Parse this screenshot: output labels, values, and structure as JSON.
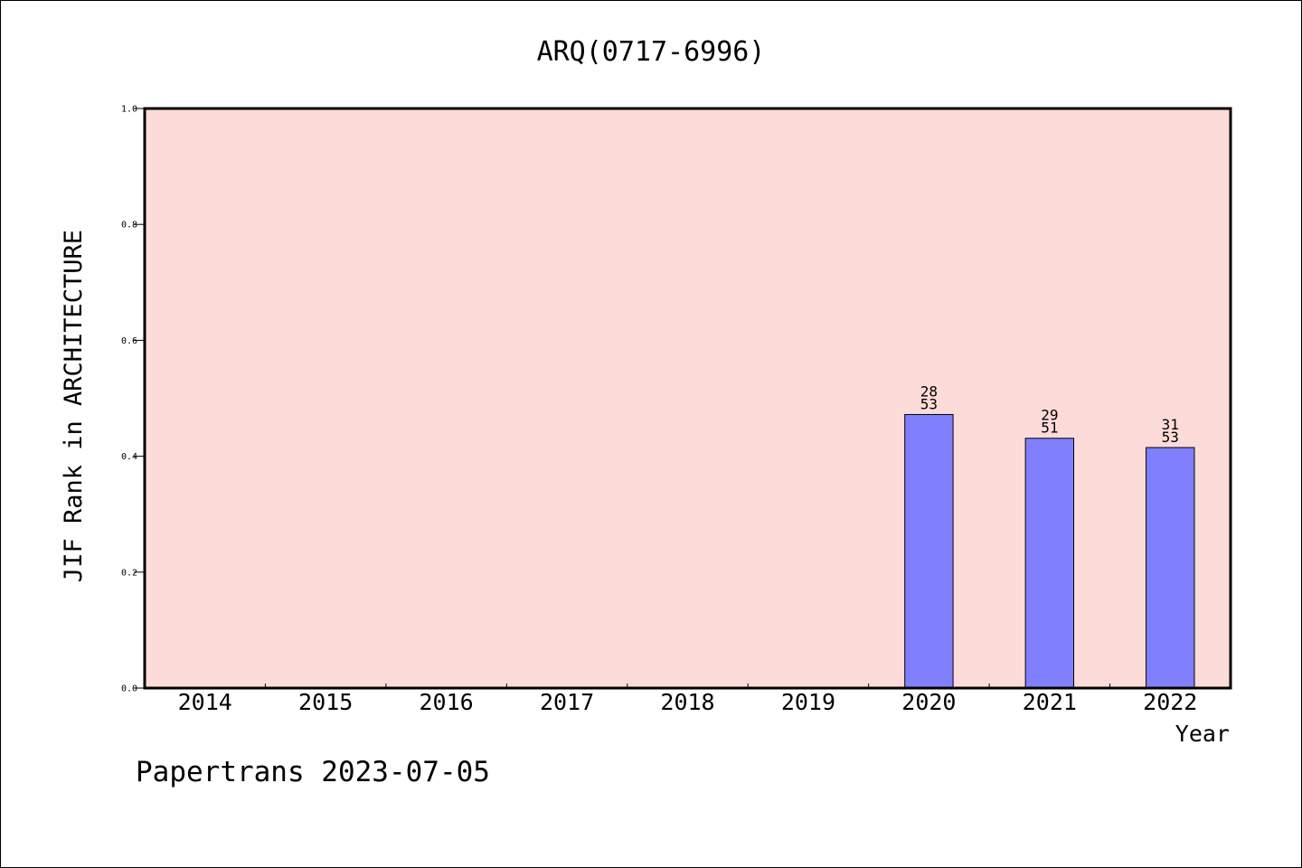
{
  "chart_data": {
    "type": "bar",
    "title": "ARQ(0717-6996)",
    "xlabel": "Year",
    "ylabel": "JIF Rank in ARCHITECTURE",
    "ylim": [
      0,
      1.0
    ],
    "yticks": [
      "0.0",
      "0.2",
      "0.4",
      "0.6",
      "0.8",
      "1.0"
    ],
    "categories": [
      "2014",
      "2015",
      "2016",
      "2017",
      "2018",
      "2019",
      "2020",
      "2021",
      "2022"
    ],
    "values": [
      null,
      null,
      null,
      null,
      null,
      null,
      0.472,
      0.431,
      0.415
    ],
    "labels": [
      null,
      null,
      null,
      null,
      null,
      null,
      {
        "rank": "28",
        "total": "53"
      },
      {
        "rank": "29",
        "total": "51"
      },
      {
        "rank": "31",
        "total": "53"
      }
    ],
    "colors": {
      "plot_bg": "#fddbd8",
      "bar_fill": "#8080ff",
      "bar_stroke": "#000000"
    },
    "grid": false,
    "footer": "Papertrans 2023-07-05"
  }
}
